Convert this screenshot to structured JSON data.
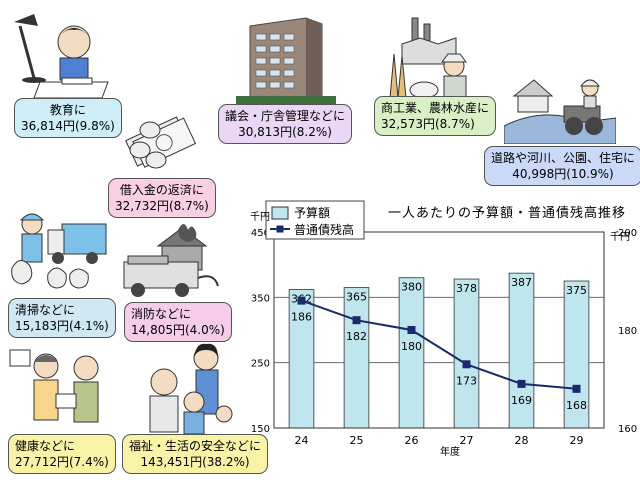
{
  "budget_items": [
    {
      "id": "education",
      "line1": "教育に",
      "line2": "36,814円(9.8%)",
      "color": "#cfeef7"
    },
    {
      "id": "assembly",
      "line1": "議会・庁舎管理などに",
      "line2": "30,813円(8.2%)",
      "color": "#e9d7f5"
    },
    {
      "id": "industry",
      "line1": "商工業、農林水産に",
      "line2": "32,573円(8.7%)",
      "color": "#d9f0c7"
    },
    {
      "id": "roads",
      "line1": "道路や河川、公園、住宅に",
      "line2": "40,998円(10.9%)",
      "color": "#c9d9f7"
    },
    {
      "id": "debt",
      "line1": "借入金の返済に",
      "line2": "32,732円(8.7%)",
      "color": "#f9cfe3"
    },
    {
      "id": "cleaning",
      "line1": "清掃などに",
      "line2": "15,183円(4.1%)",
      "color": "#cfe8f3"
    },
    {
      "id": "fire",
      "line1": "消防などに",
      "line2": "14,805円(4.0%)",
      "color": "#f6cde9"
    },
    {
      "id": "health",
      "line1": "健康などに",
      "line2": "27,712円(7.4%)",
      "color": "#f8f3a6"
    },
    {
      "id": "welfare",
      "line1": "福祉・生活の安全などに",
      "line2": "143,451円(38.2%)",
      "color": "#f8f3a6"
    }
  ],
  "chart_data": {
    "type": "bar+line",
    "title": "一人あたりの予算額・普通債残高推移",
    "xlabel": "年度",
    "left_unit": "千円",
    "right_unit": "千円",
    "categories": [
      "24",
      "25",
      "26",
      "27",
      "28",
      "29"
    ],
    "series": [
      {
        "name": "予算額",
        "type": "bar",
        "axis": "left",
        "values": [
          362,
          365,
          380,
          378,
          387,
          375
        ],
        "color": "#bfe6ee"
      },
      {
        "name": "普通債残高",
        "type": "line",
        "axis": "right",
        "values": [
          186,
          182,
          180,
          173,
          169,
          168
        ],
        "color": "#1a2a6a"
      }
    ],
    "ylim_left": [
      150,
      450
    ],
    "yticks_left": [
      150,
      250,
      350,
      450
    ],
    "ylim_right": [
      160,
      200
    ],
    "yticks_right": [
      160,
      180,
      200
    ],
    "grid": true,
    "legend_position": "top-left"
  }
}
